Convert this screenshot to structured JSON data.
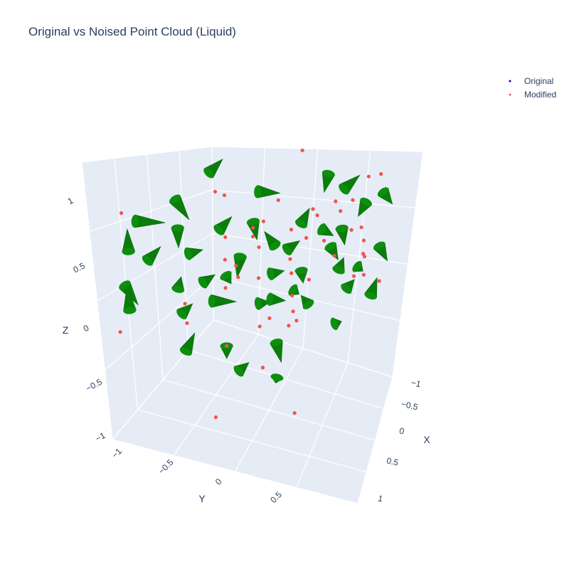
{
  "chart_data": {
    "type": "scatter",
    "title": "Original vs Noised Point Cloud (Liquid)",
    "xlabel": "X",
    "ylabel": "Y",
    "zlabel": "Z",
    "x_ticks": [
      "−1",
      "−0.5",
      "0",
      "0.5",
      "1"
    ],
    "y_ticks": [
      "−1",
      "−0.5",
      "0",
      "0.5"
    ],
    "z_ticks": [
      "−1",
      "−0.5",
      "0",
      "0.5",
      "1"
    ],
    "legend_position": "top-right",
    "grid": true,
    "colors": {
      "original": "#0000cd",
      "modified": "#ef5350",
      "cone": "#0b7d0b",
      "scene_bg": "#e5ecf6",
      "grid": "#ffffff"
    },
    "series": [
      {
        "name": "Original",
        "marker": "point",
        "points": []
      },
      {
        "name": "Modified",
        "marker": "point",
        "points": [
          [
            0.1,
            0.35,
            1.05
          ],
          [
            0.4,
            -0.2,
            0.62
          ],
          [
            0.55,
            0.85,
            0.78
          ],
          [
            0.65,
            0.9,
            0.8
          ],
          [
            -0.3,
            -0.45,
            0.78
          ],
          [
            -0.25,
            -0.4,
            0.75
          ],
          [
            0.0,
            0.1,
            0.66
          ],
          [
            0.35,
            0.55,
            0.6
          ],
          [
            -0.85,
            -0.8,
            0.62
          ],
          [
            0.2,
            0.4,
            0.55
          ],
          [
            -0.05,
            -0.1,
            0.52
          ],
          [
            0.4,
            0.55,
            0.52
          ],
          [
            -0.15,
            -0.05,
            0.45
          ],
          [
            0.1,
            0.15,
            0.42
          ],
          [
            -0.3,
            -0.25,
            0.4
          ],
          [
            0.45,
            0.75,
            0.58
          ],
          [
            -0.15,
            -0.05,
            0.38
          ],
          [
            0.2,
            0.25,
            0.34
          ],
          [
            -0.2,
            -0.55,
            0.3
          ],
          [
            0.6,
            0.55,
            0.4
          ],
          [
            -0.1,
            -0.05,
            0.3
          ],
          [
            0.3,
            0.45,
            0.28
          ],
          [
            0.45,
            0.8,
            0.3
          ],
          [
            -0.2,
            -0.3,
            0.2
          ],
          [
            0.1,
            0.15,
            0.18
          ],
          [
            0.6,
            0.7,
            0.25
          ],
          [
            -0.05,
            -0.2,
            0.1
          ],
          [
            0.1,
            0.2,
            0.05
          ],
          [
            -0.25,
            -0.4,
            0.05
          ],
          [
            0.55,
            0.95,
            0.05
          ],
          [
            -0.5,
            -0.6,
            -0.05
          ],
          [
            0.2,
            0.4,
            -0.05
          ],
          [
            -0.85,
            -1.0,
            -0.2
          ],
          [
            0.6,
            0.85,
            -0.1
          ],
          [
            0.55,
            0.65,
            -0.05
          ],
          [
            0.1,
            0.25,
            -0.15
          ],
          [
            0.75,
            0.9,
            -0.15
          ],
          [
            -0.55,
            -0.45,
            -0.25
          ],
          [
            0.0,
            -0.05,
            -0.25
          ],
          [
            0.1,
            0.3,
            -0.3
          ],
          [
            0.15,
            0.25,
            -0.35
          ],
          [
            -0.3,
            -0.25,
            -0.45
          ],
          [
            0.05,
            0.35,
            -0.45
          ],
          [
            -0.05,
            -0.05,
            -0.65
          ],
          [
            -0.35,
            -0.4,
            -0.95
          ],
          [
            0.2,
            0.15,
            -1.05
          ],
          [
            -0.2,
            -0.25,
            0.1
          ],
          [
            0.35,
            0.65,
            0.1
          ],
          [
            0.6,
            0.8,
            0.08
          ],
          [
            -0.1,
            0.0,
            -0.35
          ]
        ]
      }
    ],
    "cones": [
      [
        -0.4,
        -0.3,
        0.9,
        0.6,
        -0.5,
        0.5
      ],
      [
        -0.8,
        -0.7,
        0.55,
        0.8,
        0.2,
        0.0
      ],
      [
        -0.6,
        -0.45,
        0.7,
        0.4,
        0.0,
        -0.6
      ],
      [
        -0.1,
        -0.1,
        0.75,
        0.7,
        0.0,
        0.0
      ],
      [
        0.3,
        0.45,
        0.85,
        -0.2,
        0.3,
        -0.7
      ],
      [
        0.4,
        0.6,
        0.7,
        0.5,
        0.1,
        0.5
      ],
      [
        0.7,
        0.85,
        0.65,
        0.4,
        0.0,
        -0.4
      ],
      [
        0.55,
        0.85,
        0.55,
        -0.3,
        0.2,
        -0.6
      ],
      [
        -0.55,
        -0.55,
        0.5,
        0.0,
        0.0,
        -0.6
      ],
      [
        -0.35,
        -0.25,
        0.45,
        0.3,
        0.3,
        0.4
      ],
      [
        -0.15,
        -0.05,
        0.5,
        0.1,
        0.1,
        -0.6
      ],
      [
        0.15,
        0.25,
        0.45,
        0.2,
        0.2,
        0.5
      ],
      [
        0.3,
        0.35,
        0.4,
        0.4,
        0.1,
        -0.2
      ],
      [
        0.45,
        0.45,
        0.4,
        0.1,
        0.2,
        -0.6
      ],
      [
        -0.8,
        -0.85,
        0.35,
        0.1,
        -0.2,
        0.7
      ],
      [
        -0.5,
        -0.5,
        0.3,
        0.5,
        -0.1,
        0.2
      ],
      [
        -0.75,
        -0.65,
        0.25,
        0.3,
        0.3,
        0.4
      ],
      [
        -0.2,
        -0.2,
        0.25,
        0.0,
        -0.3,
        -0.6
      ],
      [
        0.0,
        0.05,
        0.3,
        -0.4,
        0.1,
        0.4
      ],
      [
        0.1,
        0.05,
        0.28,
        0.5,
        -0.3,
        0.4
      ],
      [
        0.4,
        0.3,
        0.28,
        0.3,
        0.0,
        -0.4
      ],
      [
        0.75,
        0.7,
        0.22,
        0.3,
        0.4,
        -0.6
      ],
      [
        -0.85,
        -0.85,
        0.1,
        0.4,
        -0.1,
        -0.5
      ],
      [
        -0.45,
        -0.35,
        0.05,
        0.4,
        0.0,
        0.3
      ],
      [
        -0.3,
        -0.25,
        0.1,
        0.1,
        0.2,
        -0.3
      ],
      [
        0.0,
        -0.05,
        0.1,
        0.4,
        0.2,
        0.1
      ],
      [
        0.2,
        0.15,
        0.1,
        0.0,
        0.3,
        -0.5
      ],
      [
        0.45,
        0.45,
        0.05,
        0.2,
        -0.2,
        0.5
      ],
      [
        0.55,
        0.75,
        0.0,
        0.2,
        0.2,
        -0.2
      ],
      [
        -0.85,
        -0.8,
        -0.1,
        -0.2,
        0.4,
        0.6
      ],
      [
        -0.55,
        -0.55,
        -0.15,
        0.4,
        -0.1,
        0.4
      ],
      [
        -0.4,
        -0.3,
        -0.1,
        0.7,
        0.3,
        0.0
      ],
      [
        -0.1,
        -0.05,
        -0.15,
        0.3,
        0.3,
        0.0
      ],
      [
        0.0,
        -0.05,
        -0.1,
        0.5,
        0.1,
        0.0
      ],
      [
        0.25,
        0.25,
        -0.2,
        -0.4,
        0.4,
        0.1
      ],
      [
        0.5,
        0.6,
        -0.15,
        0.3,
        -0.1,
        0.4
      ],
      [
        0.7,
        0.8,
        -0.25,
        0.1,
        0.4,
        0.5
      ],
      [
        -0.55,
        -0.5,
        -0.45,
        0.2,
        0.3,
        0.5
      ],
      [
        -0.3,
        -0.25,
        -0.45,
        0.0,
        0.0,
        -0.4
      ],
      [
        0.05,
        0.0,
        -0.45,
        0.2,
        0.0,
        -0.6
      ],
      [
        0.45,
        0.45,
        -0.4,
        0.2,
        0.3,
        0.0
      ],
      [
        -0.25,
        -0.1,
        -0.7,
        0.4,
        -0.1,
        0.4
      ],
      [
        0.05,
        0.05,
        -0.75,
        -0.1,
        0.2,
        -0.3
      ],
      [
        -0.55,
        -0.6,
        0.05,
        0.0,
        0.3,
        0.3
      ],
      [
        0.15,
        0.1,
        -0.05,
        0.3,
        -0.3,
        0.0
      ]
    ]
  }
}
